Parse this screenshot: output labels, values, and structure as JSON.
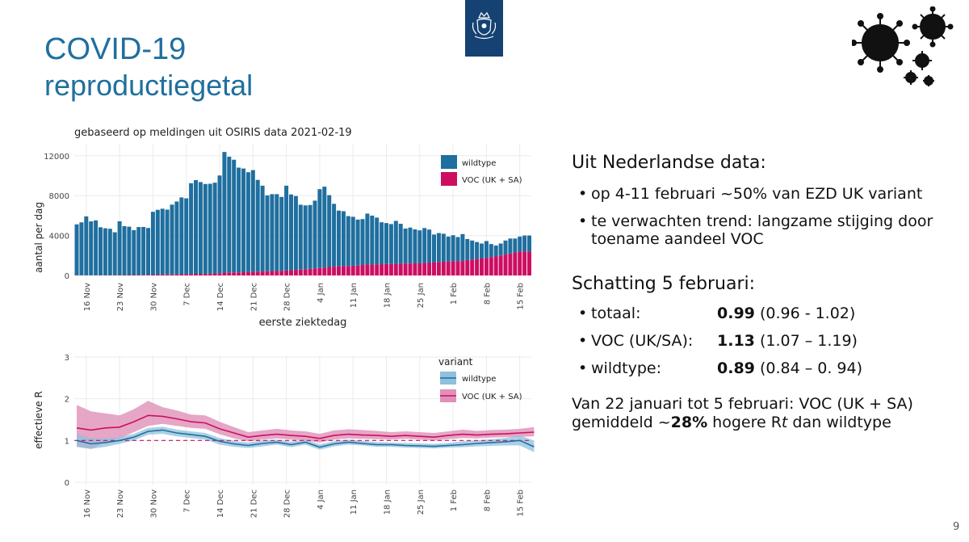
{
  "title": {
    "line1": "COVID-19",
    "line2": "reproductiegetal"
  },
  "page_number": "9",
  "text_panel": {
    "heading1": "Uit Nederlandse data:",
    "bullets1": [
      "op 4-11 februari ~50% van EZD UK variant",
      "te verwachten trend: langzame stijging door",
      "toename aandeel VOC"
    ],
    "heading2": "Schatting 5 februari:",
    "estimates": [
      {
        "label": "totaal:",
        "value": "0.99",
        "ci": "(0.96 - 1.02)"
      },
      {
        "label": "VOC (UK/SA):",
        "value": "1.13",
        "ci": "(1.07 – 1.19)"
      },
      {
        "label": "wildtype:",
        "value": "0.89",
        "ci": "(0.84 – 0. 94)"
      }
    ],
    "conclusion_line1": "Van 22 januari tot 5 februari: VOC (UK + SA)",
    "conclusion_pre": "gemiddeld ~",
    "conclusion_bold": "28%",
    "conclusion_mid": " hogere R",
    "conclusion_italic": "t",
    "conclusion_post": " dan wildtype"
  },
  "colors": {
    "title": "#1f6f9f",
    "wildtype": "#1f6f9f",
    "voc": "#cc0e62",
    "voc_band": "#e090b8",
    "wild_band": "#8fc0dc",
    "grid": "#ebebeb",
    "logo": "#154273"
  },
  "icons": {
    "logo": "royal-coat-of-arms-logo",
    "virus": "coronavirus-icon"
  },
  "chart_data": [
    {
      "type": "bar",
      "stacked": true,
      "title": "gebaseerd op meldingen uit OSIRIS data 2021-02-19",
      "xlabel": "eerste ziektedag",
      "ylabel": "aantal per dag",
      "ylim": [
        0,
        13200
      ],
      "yticks": [
        0,
        4000,
        8000,
        12000
      ],
      "xticks": [
        "16 Nov",
        "23 Nov",
        "30 Nov",
        "7 Dec",
        "14 Dec",
        "21 Dec",
        "28 Dec",
        "4 Jan",
        "11 Jan",
        "18 Jan",
        "25 Jan",
        "1 Feb",
        "8 Feb",
        "15 Feb"
      ],
      "legend_position": "top-right",
      "start_date": "2020-11-14",
      "series": [
        {
          "name": "wildtype",
          "values": [
            5100,
            5300,
            5900,
            5400,
            5500,
            4800,
            4700,
            4650,
            4300,
            5400,
            4900,
            4850,
            4500,
            4800,
            4800,
            4700,
            6300,
            6500,
            6600,
            6500,
            7000,
            7300,
            7700,
            7600,
            9100,
            9400,
            9200,
            9000,
            9000,
            9100,
            9800,
            12100,
            11600,
            11300,
            10500,
            10400,
            10000,
            10200,
            9200,
            8600,
            7600,
            7700,
            7700,
            7400,
            8500,
            7600,
            7400,
            6500,
            6400,
            6400,
            6800,
            7900,
            8100,
            7200,
            6300,
            5600,
            5500,
            5000,
            4900,
            4600,
            4600,
            5100,
            4900,
            4700,
            4200,
            4100,
            4000,
            4300,
            4000,
            3500,
            3600,
            3400,
            3300,
            3500,
            3300,
            2800,
            2900,
            2800,
            2500,
            2600,
            2400,
            2700,
            2100,
            1900,
            1700,
            1500,
            1700,
            1300,
            1100,
            1200,
            1400,
            1500,
            1400,
            1500,
            1600,
            1600
          ]
        },
        {
          "name": "VOC (UK + SA)",
          "values": [
            20,
            20,
            20,
            20,
            20,
            30,
            30,
            30,
            30,
            30,
            40,
            40,
            40,
            50,
            60,
            60,
            80,
            80,
            90,
            100,
            100,
            110,
            120,
            130,
            150,
            160,
            160,
            170,
            190,
            200,
            220,
            280,
            300,
            300,
            310,
            320,
            350,
            360,
            380,
            400,
            420,
            450,
            450,
            470,
            500,
            520,
            560,
            590,
            620,
            660,
            700,
            750,
            800,
            850,
            880,
            900,
            940,
            950,
            980,
            1000,
            1050,
            1100,
            1100,
            1100,
            1130,
            1150,
            1150,
            1170,
            1180,
            1200,
            1200,
            1220,
            1220,
            1250,
            1300,
            1300,
            1350,
            1380,
            1400,
            1430,
            1450,
            1450,
            1550,
            1600,
            1650,
            1700,
            1750,
            1850,
            1900,
            2000,
            2100,
            2200,
            2300,
            2400,
            2400,
            2400
          ]
        }
      ]
    },
    {
      "type": "line",
      "title": "",
      "xlabel": "",
      "ylabel": "effectieve R",
      "ylim": [
        0,
        3
      ],
      "yticks": [
        0,
        1,
        2,
        3
      ],
      "xticks": [
        "16 Nov",
        "23 Nov",
        "30 Nov",
        "7 Dec",
        "14 Dec",
        "21 Dec",
        "28 Dec",
        "4 Jan",
        "11 Jan",
        "18 Jan",
        "25 Jan",
        "1 Feb",
        "8 Feb",
        "15 Feb"
      ],
      "legend_title": "variant",
      "legend_position": "top-right",
      "reference_line": 1,
      "x": [
        "2020-11-14",
        "2020-11-17",
        "2020-11-20",
        "2020-11-23",
        "2020-11-26",
        "2020-11-29",
        "2020-12-02",
        "2020-12-05",
        "2020-12-08",
        "2020-12-11",
        "2020-12-14",
        "2020-12-17",
        "2020-12-20",
        "2020-12-23",
        "2020-12-26",
        "2020-12-29",
        "2021-01-01",
        "2021-01-04",
        "2021-01-07",
        "2021-01-10",
        "2021-01-13",
        "2021-01-16",
        "2021-01-19",
        "2021-01-22",
        "2021-01-25",
        "2021-01-28",
        "2021-01-31",
        "2021-02-03",
        "2021-02-06",
        "2021-02-09",
        "2021-02-12",
        "2021-02-15",
        "2021-02-18"
      ],
      "series": [
        {
          "name": "wildtype",
          "values": [
            1.0,
            0.92,
            0.95,
            1.0,
            1.08,
            1.22,
            1.25,
            1.18,
            1.14,
            1.1,
            0.98,
            0.92,
            0.88,
            0.93,
            0.96,
            0.9,
            0.96,
            0.84,
            0.92,
            0.96,
            0.93,
            0.9,
            0.9,
            0.88,
            0.87,
            0.86,
            0.88,
            0.9,
            0.93,
            0.95,
            0.97,
            1.0,
            0.85
          ],
          "lower": [
            0.85,
            0.8,
            0.85,
            0.92,
            1.0,
            1.14,
            1.16,
            1.1,
            1.06,
            1.02,
            0.9,
            0.85,
            0.82,
            0.86,
            0.9,
            0.84,
            0.9,
            0.78,
            0.86,
            0.9,
            0.88,
            0.85,
            0.85,
            0.83,
            0.82,
            0.81,
            0.83,
            0.84,
            0.86,
            0.87,
            0.88,
            0.88,
            0.72
          ],
          "upper": [
            1.15,
            1.05,
            1.05,
            1.08,
            1.16,
            1.3,
            1.33,
            1.26,
            1.22,
            1.18,
            1.06,
            0.99,
            0.95,
            1.0,
            1.02,
            0.97,
            1.02,
            0.91,
            0.98,
            1.02,
            0.99,
            0.96,
            0.95,
            0.94,
            0.93,
            0.92,
            0.94,
            0.98,
            1.0,
            1.03,
            1.06,
            1.12,
            1.0
          ]
        },
        {
          "name": "VOC (UK + SA)",
          "values": [
            1.3,
            1.25,
            1.3,
            1.32,
            1.45,
            1.6,
            1.58,
            1.52,
            1.45,
            1.42,
            1.28,
            1.18,
            1.08,
            1.12,
            1.15,
            1.12,
            1.1,
            1.05,
            1.12,
            1.15,
            1.13,
            1.12,
            1.1,
            1.12,
            1.1,
            1.08,
            1.12,
            1.15,
            1.13,
            1.15,
            1.16,
            1.18,
            1.2
          ],
          "lower": [
            0.85,
            0.8,
            0.95,
            1.05,
            1.2,
            1.35,
            1.4,
            1.35,
            1.3,
            1.28,
            1.15,
            1.05,
            0.98,
            1.02,
            1.05,
            1.02,
            1.0,
            0.95,
            1.02,
            1.05,
            1.04,
            1.03,
            1.02,
            1.04,
            1.02,
            1.0,
            1.03,
            1.06,
            1.05,
            1.07,
            1.08,
            1.09,
            1.1
          ],
          "upper": [
            1.85,
            1.7,
            1.65,
            1.6,
            1.75,
            1.95,
            1.8,
            1.72,
            1.62,
            1.6,
            1.45,
            1.32,
            1.2,
            1.24,
            1.28,
            1.24,
            1.22,
            1.16,
            1.24,
            1.27,
            1.25,
            1.23,
            1.2,
            1.22,
            1.2,
            1.18,
            1.22,
            1.26,
            1.23,
            1.25,
            1.26,
            1.28,
            1.32
          ]
        }
      ]
    }
  ]
}
